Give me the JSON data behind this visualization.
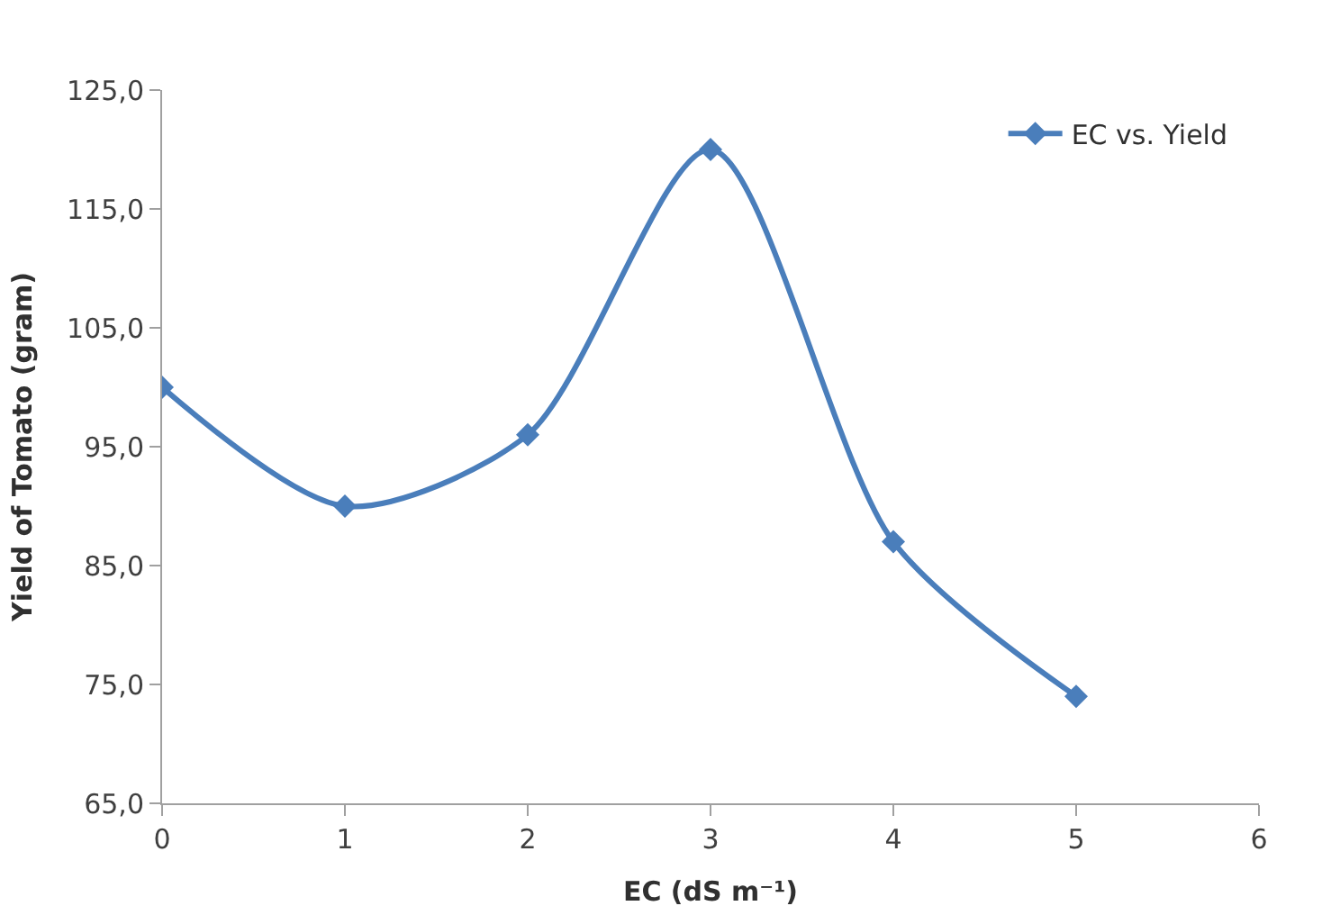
{
  "chart_data": {
    "type": "line",
    "xlabel": "EC (dS m⁻¹)",
    "ylabel": "Yield of Tomato (gram)",
    "x": [
      0,
      1,
      2,
      3,
      4,
      5
    ],
    "series": [
      {
        "name": "EC vs. Yield",
        "color": "#4a7ebb",
        "values": [
          100,
          90,
          96,
          120,
          87,
          74
        ]
      }
    ],
    "xlim": [
      0,
      6
    ],
    "xticks": [
      0,
      1,
      2,
      3,
      4,
      5,
      6
    ],
    "ylim": [
      65,
      125
    ],
    "yticks": [
      {
        "value": 65,
        "label": "65,0"
      },
      {
        "value": 75,
        "label": "75,0"
      },
      {
        "value": 85,
        "label": "85,0"
      },
      {
        "value": 95,
        "label": "95,0"
      },
      {
        "value": 105,
        "label": "105,0"
      },
      {
        "value": 115,
        "label": "115,0"
      },
      {
        "value": 125,
        "label": "125,0"
      }
    ],
    "legend": "top right",
    "marker": "diamond",
    "line_style": "solid"
  }
}
